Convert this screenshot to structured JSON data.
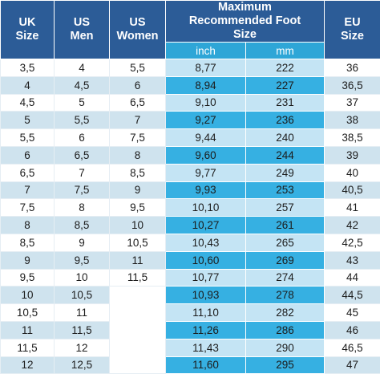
{
  "headers": {
    "uk": "UK Size",
    "us_men": "US Men",
    "us_women": "US Women",
    "foot_size": "Maximum Recommended Foot Size",
    "inch": "inch",
    "mm": "mm",
    "eu": "EU Size"
  },
  "rows": [
    {
      "uk": "3,5",
      "us_men": "4",
      "us_women": "5,5",
      "inch": "8,77",
      "mm": "222",
      "eu": "36"
    },
    {
      "uk": "4",
      "us_men": "4,5",
      "us_women": "6",
      "inch": "8,94",
      "mm": "227",
      "eu": "36,5"
    },
    {
      "uk": "4,5",
      "us_men": "5",
      "us_women": "6,5",
      "inch": "9,10",
      "mm": "231",
      "eu": "37"
    },
    {
      "uk": "5",
      "us_men": "5,5",
      "us_women": "7",
      "inch": "9,27",
      "mm": "236",
      "eu": "38"
    },
    {
      "uk": "5,5",
      "us_men": "6",
      "us_women": "7,5",
      "inch": "9,44",
      "mm": "240",
      "eu": "38,5"
    },
    {
      "uk": "6",
      "us_men": "6,5",
      "us_women": "8",
      "inch": "9,60",
      "mm": "244",
      "eu": "39"
    },
    {
      "uk": "6,5",
      "us_men": "7",
      "us_women": "8,5",
      "inch": "9,77",
      "mm": "249",
      "eu": "40"
    },
    {
      "uk": "7",
      "us_men": "7,5",
      "us_women": "9",
      "inch": "9,93",
      "mm": "253",
      "eu": "40,5"
    },
    {
      "uk": "7,5",
      "us_men": "8",
      "us_women": "9,5",
      "inch": "10,10",
      "mm": "257",
      "eu": "41"
    },
    {
      "uk": "8",
      "us_men": "8,5",
      "us_women": "10",
      "inch": "10,27",
      "mm": "261",
      "eu": "42"
    },
    {
      "uk": "8,5",
      "us_men": "9",
      "us_women": "10,5",
      "inch": "10,43",
      "mm": "265",
      "eu": "42,5"
    },
    {
      "uk": "9",
      "us_men": "9,5",
      "us_women": "11",
      "inch": "10,60",
      "mm": "269",
      "eu": "43"
    },
    {
      "uk": "9,5",
      "us_men": "10",
      "us_women": "11,5",
      "inch": "10,77",
      "mm": "274",
      "eu": "44"
    },
    {
      "uk": "10",
      "us_men": "10,5",
      "us_women": "",
      "inch": "10,93",
      "mm": "278",
      "eu": "44,5"
    },
    {
      "uk": "10,5",
      "us_men": "11",
      "us_women": "",
      "inch": "11,10",
      "mm": "282",
      "eu": "45"
    },
    {
      "uk": "11",
      "us_men": "11,5",
      "us_women": "",
      "inch": "11,26",
      "mm": "286",
      "eu": "46"
    },
    {
      "uk": "11,5",
      "us_men": "12",
      "us_women": "",
      "inch": "11,43",
      "mm": "290",
      "eu": "46,5"
    },
    {
      "uk": "12",
      "us_men": "12,5",
      "us_women": "",
      "inch": "11,60",
      "mm": "295",
      "eu": "47"
    }
  ]
}
